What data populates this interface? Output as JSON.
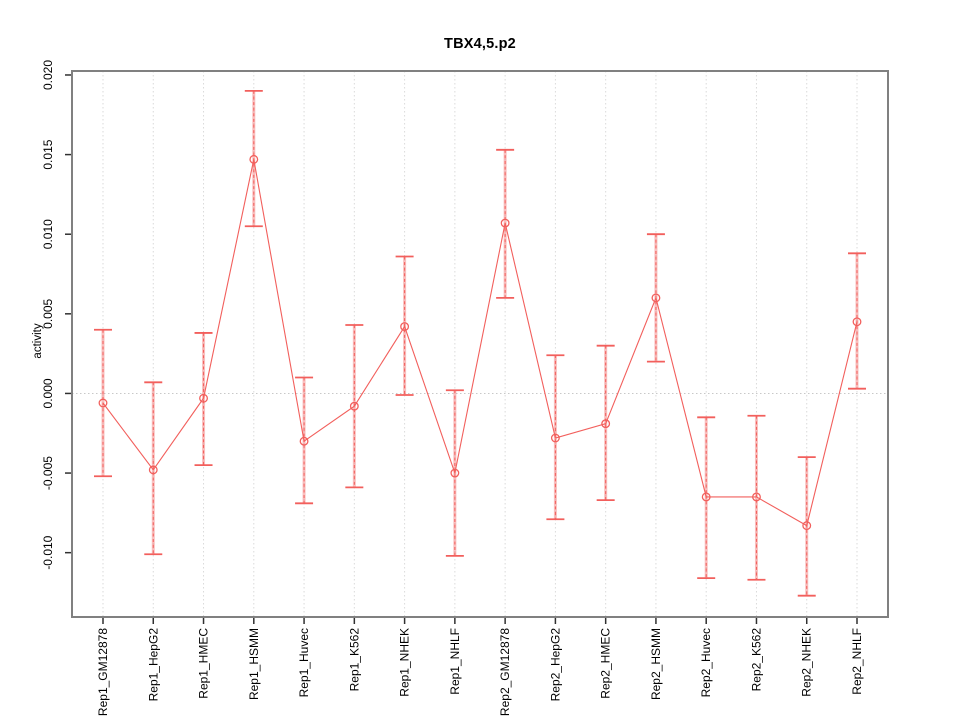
{
  "chart_data": {
    "type": "line",
    "title": "TBX4,5.p2",
    "ylabel": "activity",
    "xlabel": "",
    "legend": null,
    "grid": {
      "vertical_dotted_per_category": true,
      "horizontal_dotted_at_zero": true
    },
    "categories": [
      "Rep1_GM12878",
      "Rep1_HepG2",
      "Rep1_HMEC",
      "Rep1_HSMM",
      "Rep1_Huvec",
      "Rep1_K562",
      "Rep1_NHEK",
      "Rep1_NHLF",
      "Rep2_GM12878",
      "Rep2_HepG2",
      "Rep2_HMEC",
      "Rep2_HSMM",
      "Rep2_Huvec",
      "Rep2_K562",
      "Rep2_NHEK",
      "Rep2_NHLF"
    ],
    "series": [
      {
        "name": "activity",
        "marker": "open-circle",
        "means": [
          -0.0006,
          -0.0048,
          -0.0003,
          0.0147,
          -0.003,
          -0.0008,
          0.0042,
          -0.005,
          0.0107,
          -0.0028,
          -0.0019,
          0.006,
          -0.0065,
          -0.0065,
          -0.0083,
          0.0045
        ],
        "upper": [
          0.004,
          0.0007,
          0.0038,
          0.019,
          0.001,
          0.0043,
          0.0086,
          0.0002,
          0.0153,
          0.0024,
          0.003,
          0.01,
          -0.0015,
          -0.0014,
          -0.004,
          0.0088
        ],
        "lower": [
          -0.0052,
          -0.0101,
          -0.0045,
          0.0105,
          -0.0069,
          -0.0059,
          -0.0001,
          -0.0102,
          0.006,
          -0.0079,
          -0.0067,
          0.002,
          -0.0116,
          -0.0117,
          -0.0127,
          0.0003
        ]
      }
    ],
    "yticks": [
      0.02,
      0.015,
      0.01,
      0.005,
      0.0,
      -0.005,
      -0.01
    ],
    "ylim": [
      -0.01404,
      0.02025
    ],
    "colors": {
      "series": "#f25f5c",
      "error_bar_fill": "rgba(242,95,92,0.4)",
      "grid": "#dadada",
      "zero_line": "#c8c8c8",
      "box": "#808080",
      "tick": "#303030",
      "text": "#000000"
    }
  }
}
